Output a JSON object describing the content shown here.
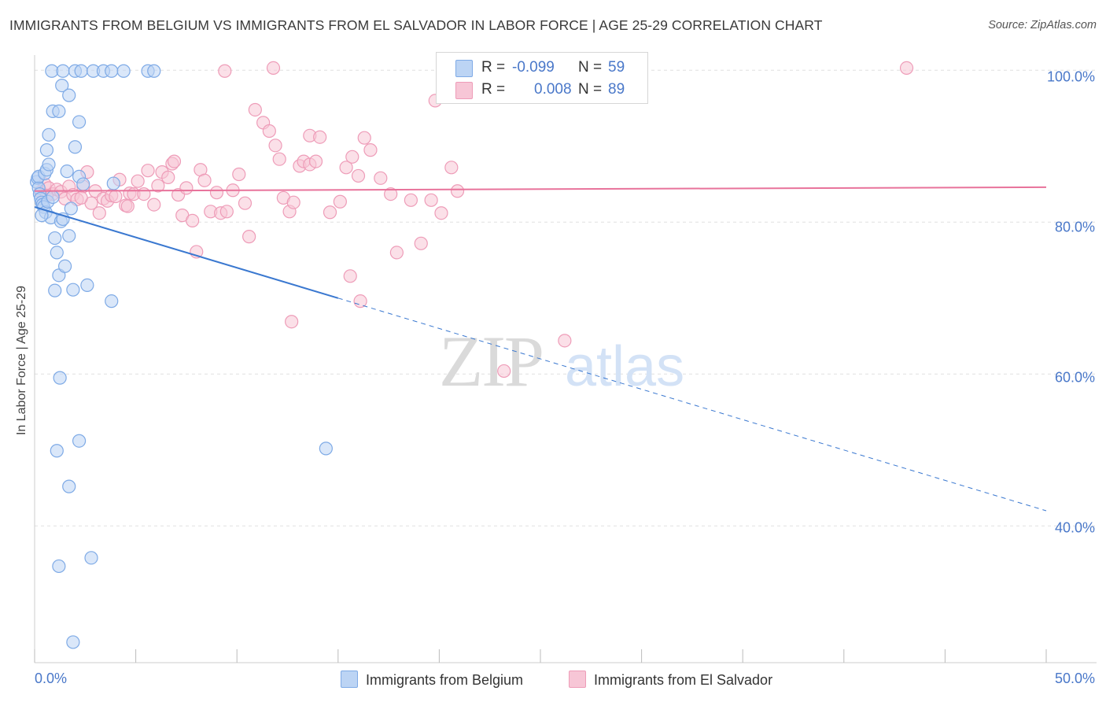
{
  "header": {
    "title": "IMMIGRANTS FROM BELGIUM VS IMMIGRANTS FROM EL SALVADOR IN LABOR FORCE | AGE 25-29 CORRELATION CHART",
    "source": "Source: ZipAtlas.com"
  },
  "colors": {
    "blue_fill": "#bcd4f4",
    "blue_stroke": "#7eaae6",
    "blue_line": "#3a78d0",
    "pink_fill": "#f7c6d6",
    "pink_stroke": "#ee9cb8",
    "pink_line": "#e8739b",
    "tick_text": "#4a78c9",
    "grid": "#e0e0e0"
  },
  "legend": {
    "rows": [
      {
        "r_label": "R =",
        "r_value": "-0.099",
        "n_label": "N =",
        "n_value": "59"
      },
      {
        "r_label": "R =",
        "r_value": "0.008",
        "n_label": "N =",
        "n_value": "89"
      }
    ]
  },
  "watermark": {
    "zip": "ZIP",
    "atlas": "atlas"
  },
  "chart_data": {
    "type": "scatter",
    "title": "IMMIGRANTS FROM BELGIUM VS IMMIGRANTS FROM EL SALVADOR IN LABOR FORCE | AGE 25-29 CORRELATION CHART",
    "xlabel": "",
    "ylabel": "In Labor Force | Age 25-29",
    "xlim": [
      0,
      50
    ],
    "ylim": [
      22,
      102
    ],
    "x_tick_labels": [
      "0.0%",
      "50.0%"
    ],
    "y_ticks": [
      40,
      60,
      80,
      100
    ],
    "y_tick_labels": [
      "40.0%",
      "60.0%",
      "80.0%",
      "100.0%"
    ],
    "grid": true,
    "legend_position": "bottom",
    "series": [
      {
        "name": "Immigrants from Belgium",
        "color": "#bcd4f4",
        "r": -0.099,
        "n": 59,
        "trend": {
          "x0": 0,
          "y0": 82.0,
          "x1": 15,
          "y1": 70.0,
          "dash_to_x": 50,
          "dash_to_y": 42.0
        },
        "points": [
          [
            0.1,
            85.3
          ],
          [
            0.15,
            85.8
          ],
          [
            0.2,
            84.5
          ],
          [
            0.25,
            83.7
          ],
          [
            0.3,
            83.1
          ],
          [
            0.35,
            82.6
          ],
          [
            0.4,
            82.3
          ],
          [
            0.2,
            86.0
          ],
          [
            0.5,
            86.4
          ],
          [
            0.6,
            86.9
          ],
          [
            0.7,
            87.6
          ],
          [
            0.45,
            82.0
          ],
          [
            0.55,
            81.3
          ],
          [
            0.65,
            82.7
          ],
          [
            0.8,
            80.6
          ],
          [
            0.9,
            83.3
          ],
          [
            0.35,
            80.9
          ],
          [
            0.6,
            89.5
          ],
          [
            0.7,
            91.5
          ],
          [
            0.9,
            94.6
          ],
          [
            1.0,
            77.9
          ],
          [
            1.1,
            76.0
          ],
          [
            1.0,
            71.0
          ],
          [
            1.2,
            73.0
          ],
          [
            1.3,
            80.1
          ],
          [
            1.4,
            80.4
          ],
          [
            1.5,
            74.2
          ],
          [
            1.7,
            78.2
          ],
          [
            1.8,
            81.8
          ],
          [
            1.9,
            71.1
          ],
          [
            2.0,
            89.9
          ],
          [
            2.2,
            86.0
          ],
          [
            2.4,
            85.0
          ],
          [
            2.6,
            71.7
          ],
          [
            2.2,
            93.2
          ],
          [
            1.2,
            94.6
          ],
          [
            1.35,
            98.0
          ],
          [
            1.7,
            96.7
          ],
          [
            1.6,
            86.7
          ],
          [
            0.85,
            99.9
          ],
          [
            1.4,
            99.9
          ],
          [
            2.0,
            99.9
          ],
          [
            2.3,
            99.9
          ],
          [
            2.9,
            99.9
          ],
          [
            3.4,
            99.9
          ],
          [
            3.8,
            99.9
          ],
          [
            4.4,
            99.9
          ],
          [
            5.6,
            99.9
          ],
          [
            5.9,
            99.9
          ],
          [
            3.8,
            69.6
          ],
          [
            3.9,
            85.1
          ],
          [
            1.25,
            59.5
          ],
          [
            1.1,
            49.9
          ],
          [
            2.2,
            51.2
          ],
          [
            1.7,
            45.2
          ],
          [
            1.2,
            34.7
          ],
          [
            2.8,
            35.8
          ],
          [
            1.9,
            24.7
          ],
          [
            14.4,
            50.2
          ]
        ]
      },
      {
        "name": "Immigrants from El Salvador",
        "color": "#f7c6d6",
        "r": 0.008,
        "n": 89,
        "trend": {
          "x0": 0,
          "y0": 84.1,
          "x1": 50,
          "y1": 84.6
        },
        "points": [
          [
            0.3,
            84.0
          ],
          [
            0.5,
            85.0
          ],
          [
            0.7,
            84.5
          ],
          [
            0.9,
            83.7
          ],
          [
            1.1,
            84.3
          ],
          [
            1.3,
            84.0
          ],
          [
            1.5,
            83.1
          ],
          [
            1.7,
            84.7
          ],
          [
            1.9,
            83.6
          ],
          [
            2.1,
            83.0
          ],
          [
            2.4,
            84.7
          ],
          [
            2.6,
            86.6
          ],
          [
            2.8,
            82.5
          ],
          [
            3.0,
            84.1
          ],
          [
            3.2,
            81.2
          ],
          [
            3.4,
            83.1
          ],
          [
            3.6,
            82.8
          ],
          [
            3.8,
            83.5
          ],
          [
            4.0,
            83.4
          ],
          [
            4.2,
            85.6
          ],
          [
            4.5,
            82.2
          ],
          [
            4.7,
            83.8
          ],
          [
            4.9,
            83.7
          ],
          [
            5.1,
            85.4
          ],
          [
            5.4,
            83.7
          ],
          [
            5.6,
            86.8
          ],
          [
            5.9,
            82.3
          ],
          [
            6.1,
            84.8
          ],
          [
            6.3,
            86.6
          ],
          [
            6.6,
            85.9
          ],
          [
            6.8,
            87.7
          ],
          [
            7.1,
            83.6
          ],
          [
            7.3,
            80.9
          ],
          [
            7.5,
            84.5
          ],
          [
            7.8,
            80.2
          ],
          [
            8.0,
            76.1
          ],
          [
            8.2,
            86.9
          ],
          [
            8.4,
            85.5
          ],
          [
            8.7,
            81.4
          ],
          [
            9.0,
            83.9
          ],
          [
            9.2,
            81.2
          ],
          [
            9.5,
            81.4
          ],
          [
            9.8,
            84.2
          ],
          [
            10.1,
            86.3
          ],
          [
            10.4,
            82.5
          ],
          [
            10.6,
            78.1
          ],
          [
            10.9,
            94.8
          ],
          [
            11.3,
            93.1
          ],
          [
            11.6,
            92.0
          ],
          [
            11.9,
            90.1
          ],
          [
            12.1,
            88.3
          ],
          [
            12.3,
            83.2
          ],
          [
            12.6,
            81.4
          ],
          [
            12.8,
            82.6
          ],
          [
            13.1,
            87.4
          ],
          [
            13.3,
            88.0
          ],
          [
            13.6,
            87.6
          ],
          [
            13.9,
            88.0
          ],
          [
            13.6,
            91.4
          ],
          [
            14.1,
            91.2
          ],
          [
            14.6,
            81.3
          ],
          [
            15.1,
            82.7
          ],
          [
            15.4,
            87.2
          ],
          [
            15.7,
            88.6
          ],
          [
            16.0,
            86.1
          ],
          [
            16.3,
            91.1
          ],
          [
            16.6,
            89.5
          ],
          [
            17.1,
            85.8
          ],
          [
            17.6,
            83.7
          ],
          [
            17.9,
            76.0
          ],
          [
            18.6,
            82.9
          ],
          [
            19.1,
            77.2
          ],
          [
            19.6,
            82.9
          ],
          [
            20.1,
            81.2
          ],
          [
            20.6,
            87.2
          ],
          [
            20.9,
            84.1
          ],
          [
            11.8,
            100.3
          ],
          [
            15.6,
            72.9
          ],
          [
            16.1,
            69.6
          ],
          [
            12.7,
            66.9
          ],
          [
            26.2,
            64.4
          ],
          [
            23.2,
            60.4
          ],
          [
            43.1,
            100.3
          ],
          [
            19.8,
            96.0
          ],
          [
            9.4,
            99.9
          ],
          [
            6.9,
            88.0
          ],
          [
            4.6,
            82.1
          ],
          [
            2.3,
            83.2
          ],
          [
            0.6,
            83.5
          ]
        ]
      }
    ]
  }
}
